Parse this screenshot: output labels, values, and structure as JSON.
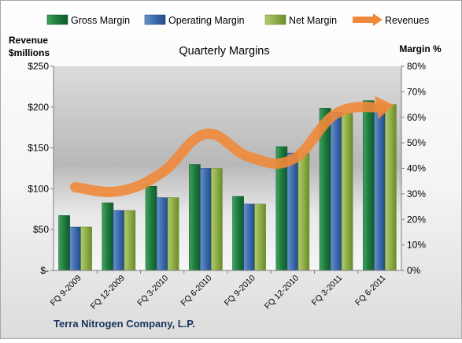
{
  "chart_data": {
    "type": "bar",
    "title": "Quarterly Margins",
    "company": "Terra Nitrogen Company, L.P.",
    "left_axis_label": [
      "Revenue",
      "$millions"
    ],
    "right_axis_label": "Margin %",
    "categories": [
      "FQ 9-2009",
      "FQ 12-2009",
      "FQ 3-2010",
      "FQ 6-2010",
      "FQ 9-2010",
      "FQ 12-2010",
      "FQ 3-2011",
      "FQ 6-2011"
    ],
    "left_ticks": [
      "$-",
      "$50",
      "$100",
      "$150",
      "$200",
      "$250"
    ],
    "right_ticks": [
      "0%",
      "10%",
      "20%",
      "30%",
      "40%",
      "50%",
      "60%",
      "70%",
      "80%"
    ],
    "ylim_left": [
      0,
      250
    ],
    "ylim_right": [
      0,
      80
    ],
    "grid": false,
    "legend_position": "top",
    "series": [
      {
        "name": "Gross Margin",
        "axis": "right",
        "kind": "bar",
        "color": "#1f7a3f",
        "values": [
          21.5,
          26.5,
          33.0,
          41.5,
          29.0,
          48.5,
          63.5,
          66.5
        ]
      },
      {
        "name": "Operating Margin",
        "axis": "right",
        "kind": "bar",
        "color": "#3d6cae",
        "values": [
          17.0,
          23.5,
          28.5,
          40.0,
          26.0,
          46.0,
          62.0,
          65.0
        ]
      },
      {
        "name": "Net Margin",
        "axis": "right",
        "kind": "bar",
        "color": "#8fae4a",
        "values": [
          17.0,
          23.5,
          28.5,
          40.0,
          26.0,
          46.0,
          61.5,
          65.0
        ]
      },
      {
        "name": "Revenues",
        "axis": "left",
        "kind": "line",
        "color": "#f0883a",
        "values": [
          102,
          97,
          120,
          167,
          139,
          136,
          192,
          200
        ]
      }
    ]
  }
}
